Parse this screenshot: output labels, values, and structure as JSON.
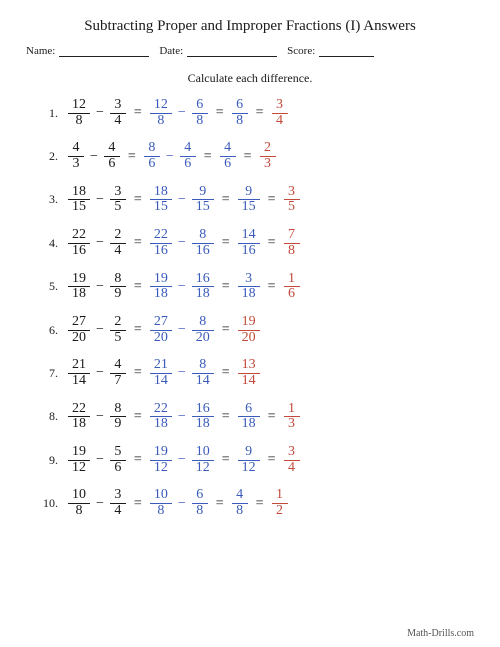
{
  "title": "Subtracting Proper and Improper Fractions (I) Answers",
  "meta": {
    "name_label": "Name:",
    "date_label": "Date:",
    "score_label": "Score:",
    "name_line_w": 90,
    "date_line_w": 90,
    "score_line_w": 55
  },
  "instruction": "Calculate each difference.",
  "footer": "Math-Drills.com",
  "color_black": "#1a1a1a",
  "color_blue": "#3a5bbb",
  "color_red": "#c24a3a",
  "problems": [
    {
      "n": "1.",
      "a": {
        "num": "12",
        "den": "8"
      },
      "b": {
        "num": "3",
        "den": "4"
      },
      "step_a": {
        "num": "12",
        "den": "8"
      },
      "step_b": {
        "num": "6",
        "den": "8"
      },
      "res": {
        "num": "6",
        "den": "8"
      },
      "simp": {
        "num": "3",
        "den": "4"
      }
    },
    {
      "n": "2.",
      "a": {
        "num": "4",
        "den": "3"
      },
      "b": {
        "num": "4",
        "den": "6"
      },
      "step_a": {
        "num": "8",
        "den": "6"
      },
      "step_b": {
        "num": "4",
        "den": "6"
      },
      "res": {
        "num": "4",
        "den": "6"
      },
      "simp": {
        "num": "2",
        "den": "3"
      }
    },
    {
      "n": "3.",
      "a": {
        "num": "18",
        "den": "15"
      },
      "b": {
        "num": "3",
        "den": "5"
      },
      "step_a": {
        "num": "18",
        "den": "15"
      },
      "step_b": {
        "num": "9",
        "den": "15"
      },
      "res": {
        "num": "9",
        "den": "15"
      },
      "simp": {
        "num": "3",
        "den": "5"
      }
    },
    {
      "n": "4.",
      "a": {
        "num": "22",
        "den": "16"
      },
      "b": {
        "num": "2",
        "den": "4"
      },
      "step_a": {
        "num": "22",
        "den": "16"
      },
      "step_b": {
        "num": "8",
        "den": "16"
      },
      "res": {
        "num": "14",
        "den": "16"
      },
      "simp": {
        "num": "7",
        "den": "8"
      }
    },
    {
      "n": "5.",
      "a": {
        "num": "19",
        "den": "18"
      },
      "b": {
        "num": "8",
        "den": "9"
      },
      "step_a": {
        "num": "19",
        "den": "18"
      },
      "step_b": {
        "num": "16",
        "den": "18"
      },
      "res": {
        "num": "3",
        "den": "18"
      },
      "simp": {
        "num": "1",
        "den": "6"
      }
    },
    {
      "n": "6.",
      "a": {
        "num": "27",
        "den": "20"
      },
      "b": {
        "num": "2",
        "den": "5"
      },
      "step_a": {
        "num": "27",
        "den": "20"
      },
      "step_b": {
        "num": "8",
        "den": "20"
      },
      "res": {
        "num": "19",
        "den": "20"
      },
      "simp": null
    },
    {
      "n": "7.",
      "a": {
        "num": "21",
        "den": "14"
      },
      "b": {
        "num": "4",
        "den": "7"
      },
      "step_a": {
        "num": "21",
        "den": "14"
      },
      "step_b": {
        "num": "8",
        "den": "14"
      },
      "res": {
        "num": "13",
        "den": "14"
      },
      "simp": null
    },
    {
      "n": "8.",
      "a": {
        "num": "22",
        "den": "18"
      },
      "b": {
        "num": "8",
        "den": "9"
      },
      "step_a": {
        "num": "22",
        "den": "18"
      },
      "step_b": {
        "num": "16",
        "den": "18"
      },
      "res": {
        "num": "6",
        "den": "18"
      },
      "simp": {
        "num": "1",
        "den": "3"
      }
    },
    {
      "n": "9.",
      "a": {
        "num": "19",
        "den": "12"
      },
      "b": {
        "num": "5",
        "den": "6"
      },
      "step_a": {
        "num": "19",
        "den": "12"
      },
      "step_b": {
        "num": "10",
        "den": "12"
      },
      "res": {
        "num": "9",
        "den": "12"
      },
      "simp": {
        "num": "3",
        "den": "4"
      }
    },
    {
      "n": "10.",
      "a": {
        "num": "10",
        "den": "8"
      },
      "b": {
        "num": "3",
        "den": "4"
      },
      "step_a": {
        "num": "10",
        "den": "8"
      },
      "step_b": {
        "num": "6",
        "den": "8"
      },
      "res": {
        "num": "4",
        "den": "8"
      },
      "simp": {
        "num": "1",
        "den": "2"
      }
    }
  ]
}
